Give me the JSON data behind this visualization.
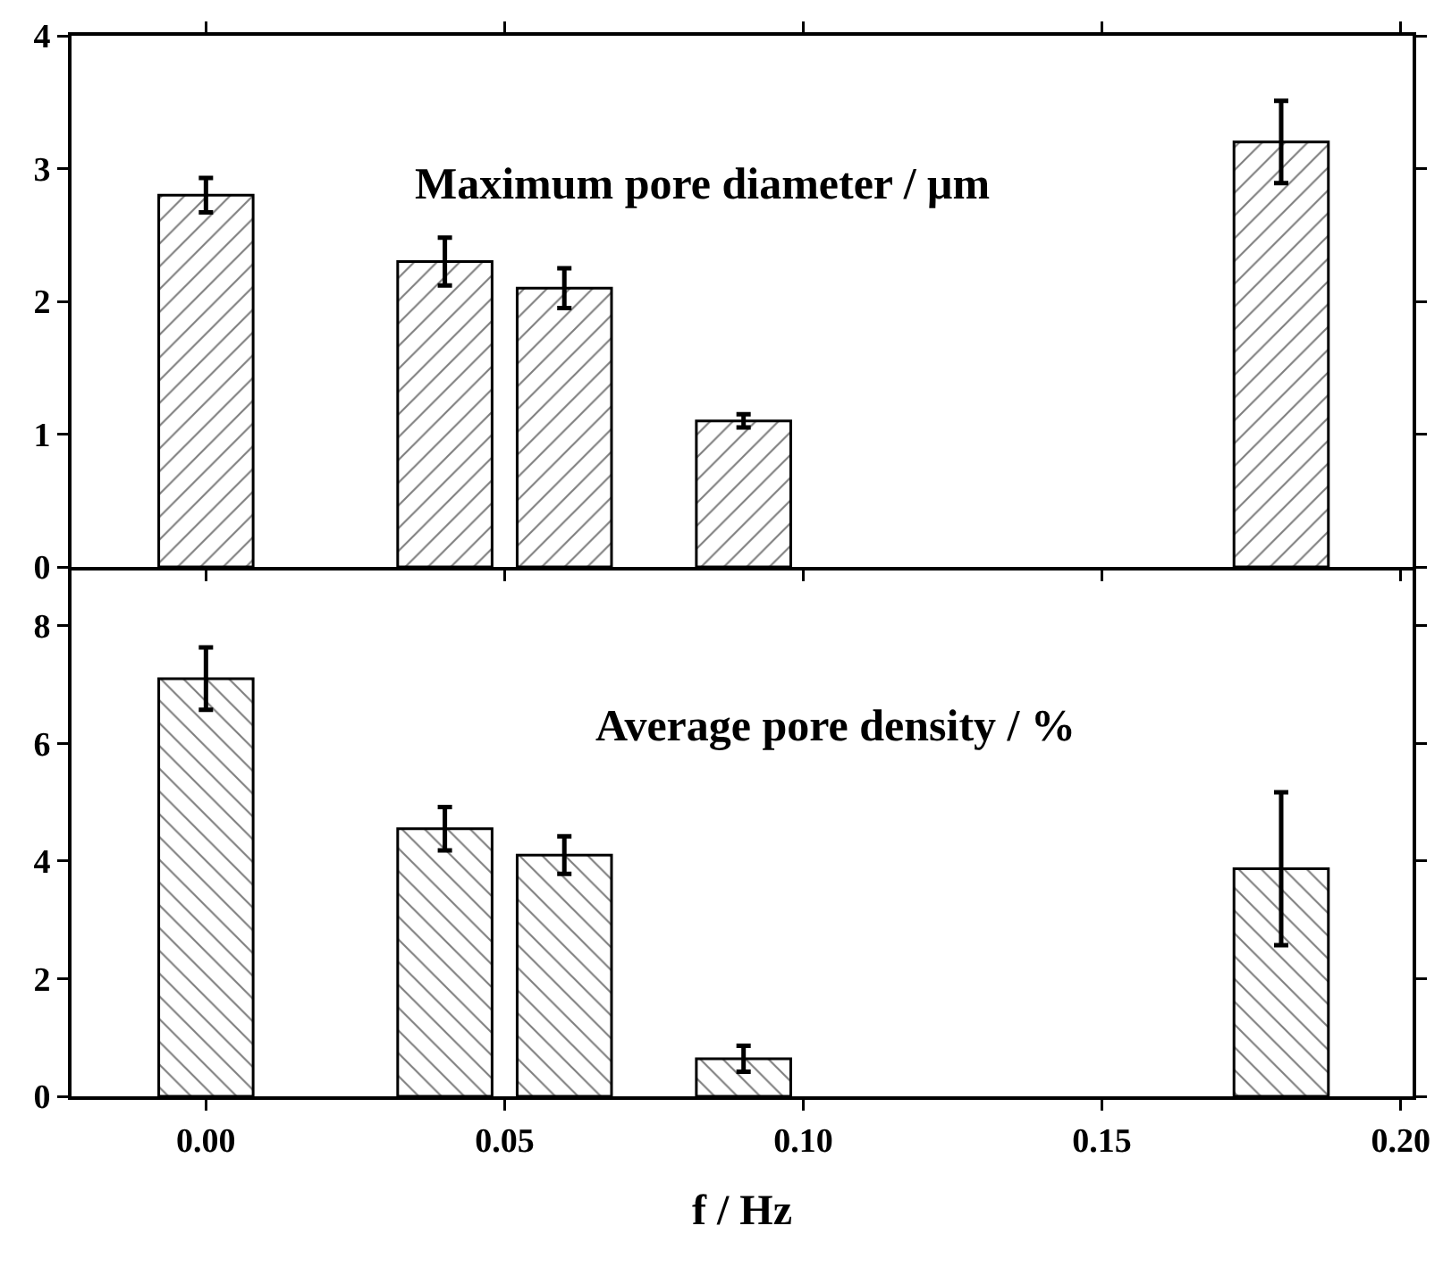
{
  "chart_data": [
    {
      "type": "bar",
      "x": [
        0,
        0.04,
        0.06,
        0.09,
        0.18
      ],
      "values": [
        2.8,
        2.3,
        2.1,
        1.1,
        3.2
      ],
      "errors": [
        0.13,
        0.18,
        0.15,
        0.05,
        0.31
      ],
      "color": "#000000",
      "xlim": [
        -0.0225,
        0.202
      ],
      "xticks": [
        {
          "value": 0,
          "label": null
        },
        {
          "value": 0.05,
          "label": null
        },
        {
          "value": 0.1,
          "label": null
        },
        {
          "value": 0.15,
          "label": null
        },
        {
          "value": 0.2,
          "label": null
        }
      ],
      "ylim": [
        0,
        4
      ],
      "yticks": [
        0,
        1,
        2,
        3,
        4
      ],
      "tick_labels": "y",
      "grid": false,
      "legend": false,
      "annotations": [
        "Maximum pore diameter / μm"
      ]
    },
    {
      "type": "bar",
      "x": [
        0,
        0.04,
        0.06,
        0.09,
        0.18
      ],
      "values": [
        7.1,
        4.55,
        4.1,
        0.64,
        3.87
      ],
      "errors": [
        0.53,
        0.37,
        0.32,
        0.22,
        1.3
      ],
      "color": "#000000",
      "xlim": [
        -0.0225,
        0.202
      ],
      "xticks": [
        {
          "value": 0,
          "label": "0.00"
        },
        {
          "value": 0.05,
          "label": "0.05"
        },
        {
          "value": 0.1,
          "label": "0.10"
        },
        {
          "value": 0.15,
          "label": "0.15"
        },
        {
          "value": 0.2,
          "label": "0.20"
        }
      ],
      "ylim": [
        0,
        9
      ],
      "yticks": [
        0,
        2,
        4,
        6,
        8
      ],
      "xlabel": "f / Hz",
      "grid": false,
      "legend": false,
      "annotations": [
        "Average pore density / %"
      ]
    }
  ]
}
